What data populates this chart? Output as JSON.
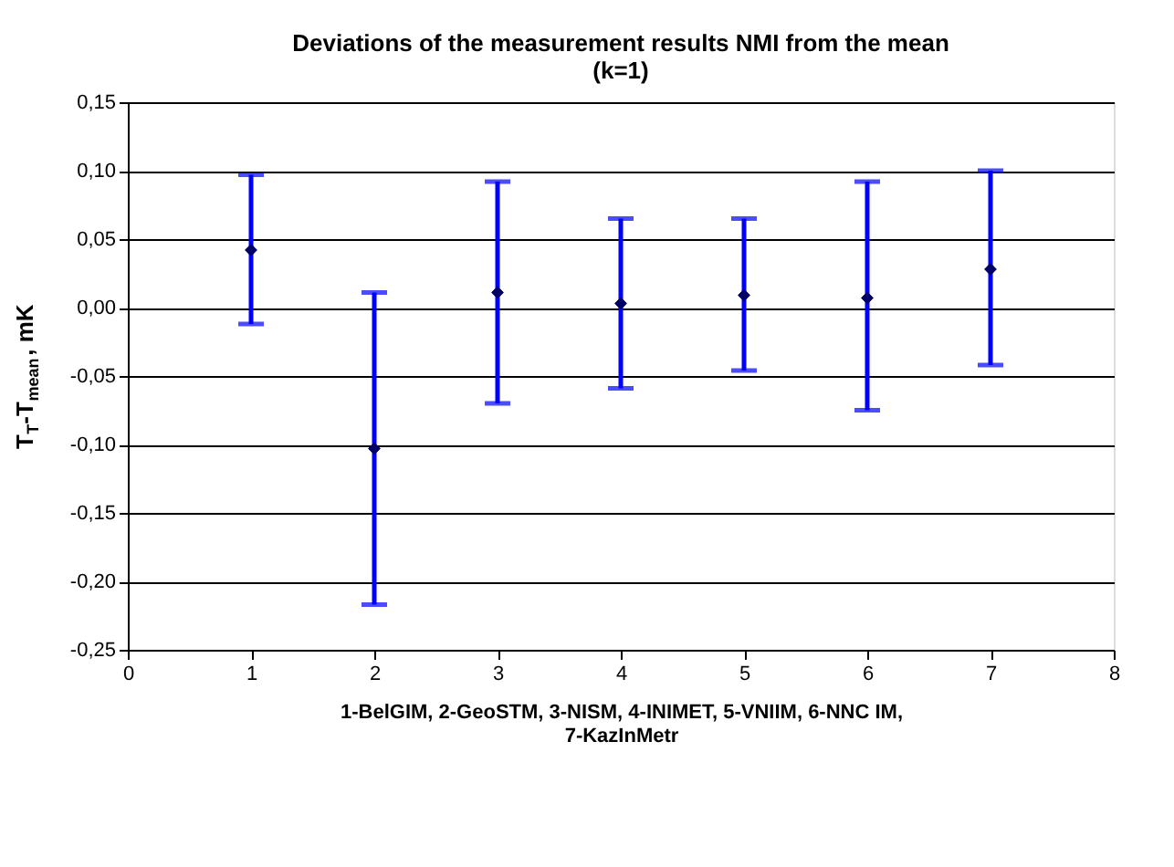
{
  "chart_data": {
    "type": "scatter",
    "title": "Deviations of the measurement results NMI from the mean\n(k=1)",
    "xlabel": "1-BelGIM, 2-GeoSTM, 3-NISM, 4-INIMET, 5-VNIIM, 6-NNC IM,\n7-KazInMetr",
    "ylabel": "T$_{T}$-T$_{mean}$, mK",
    "x": [
      1,
      2,
      3,
      4,
      5,
      6,
      7
    ],
    "series": [
      {
        "color": "#000066",
        "values": [
          0.042,
          -0.103,
          0.011,
          0.003,
          0.009,
          0.007,
          0.028
        ],
        "errors": [
          [
            -0.012,
            0.097
          ],
          [
            -0.217,
            0.011
          ],
          [
            -0.07,
            0.092
          ],
          [
            -0.059,
            0.065
          ],
          [
            -0.046,
            0.065
          ],
          [
            -0.075,
            0.092
          ],
          [
            -0.042,
            0.1
          ]
        ]
      }
    ],
    "xlim": [
      0,
      8
    ],
    "xticks": [
      0,
      1,
      2,
      3,
      4,
      5,
      6,
      7,
      8
    ],
    "ylim": [
      -0.25,
      0.15
    ],
    "yticks": [
      {
        "value": -0.25,
        "label": "-0,25"
      },
      {
        "value": -0.2,
        "label": "-0,20"
      },
      {
        "value": -0.15,
        "label": "-0,15"
      },
      {
        "value": -0.1,
        "label": "-0,10"
      },
      {
        "value": -0.05,
        "label": "-0,05"
      },
      {
        "value": 0,
        "label": "0,00"
      },
      {
        "value": 0.05,
        "label": "0,05"
      },
      {
        "value": 0.1,
        "label": "0,10"
      },
      {
        "value": 0.15,
        "label": "0,15"
      }
    ],
    "grid": "y",
    "marker": "diamond"
  }
}
